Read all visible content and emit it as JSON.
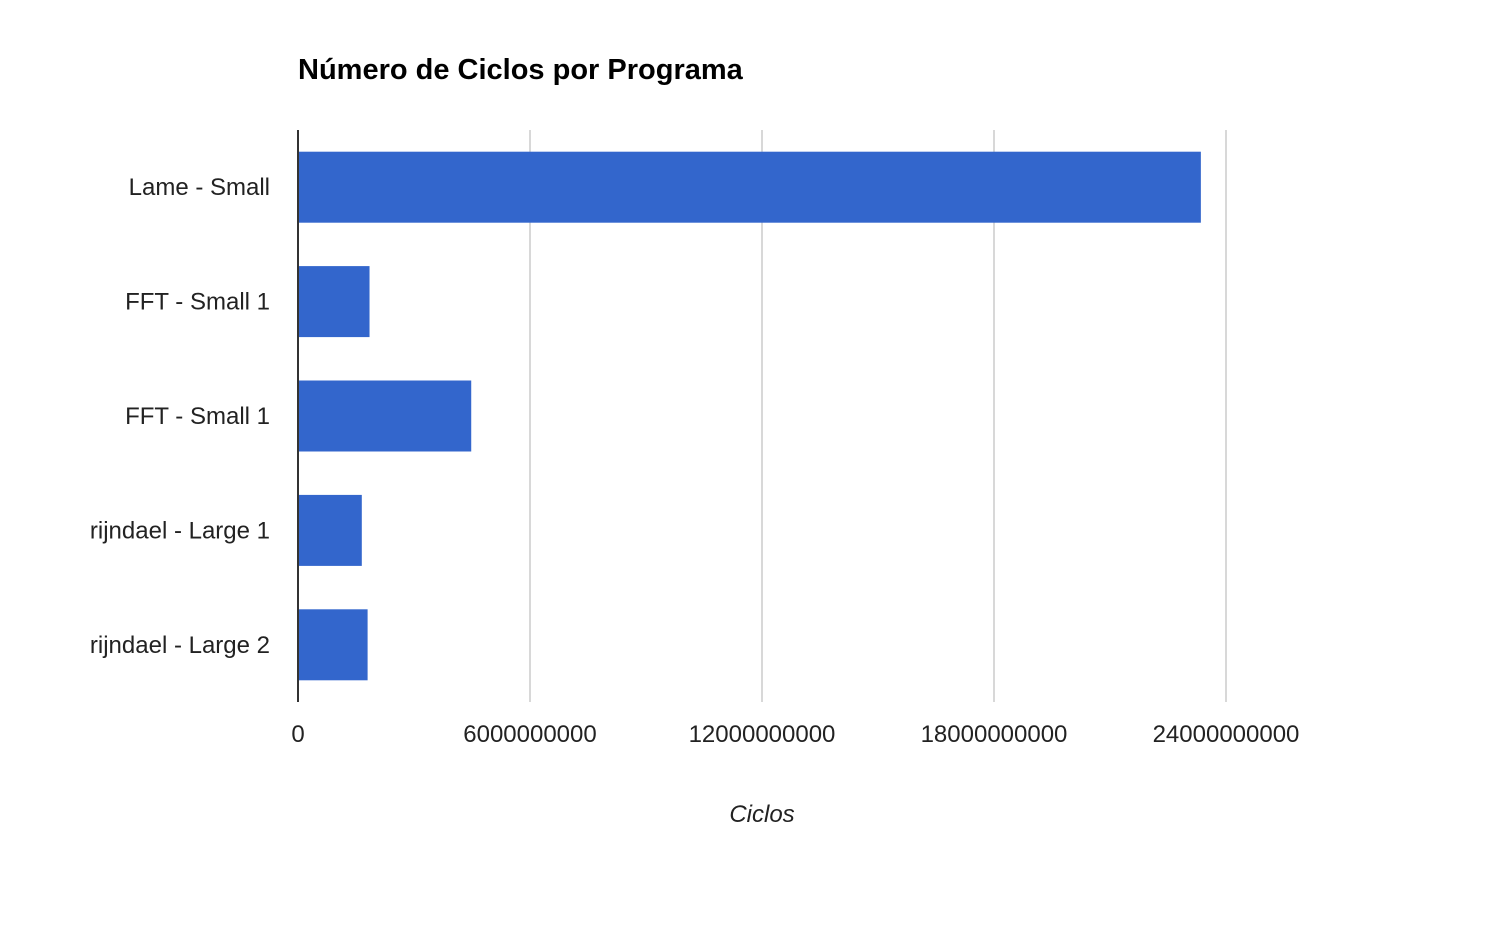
{
  "chart_data": {
    "type": "bar",
    "orientation": "horizontal",
    "title": "Número de Ciclos por Programa",
    "xlabel": "Ciclos",
    "ylabel": "",
    "categories": [
      "Lame - Small",
      "FFT - Small 1",
      "FFT - Small 1",
      "rijndael - Large 1",
      "rijndael - Large 2"
    ],
    "values": [
      23350000000,
      1850000000,
      4480000000,
      1650000000,
      1800000000
    ],
    "xlim": [
      0,
      28800000000
    ],
    "xticks": [
      "0",
      "6000000000",
      "12000000000",
      "18000000000",
      "24000000000"
    ],
    "xtick_values": [
      0,
      6000000000,
      12000000000,
      18000000000,
      24000000000
    ],
    "grid": true,
    "legend": "none",
    "colors": {
      "bar": "#3366cc",
      "grid": "#cccccc",
      "axis": "#333333",
      "label": "#222222",
      "title": "#000000"
    }
  }
}
